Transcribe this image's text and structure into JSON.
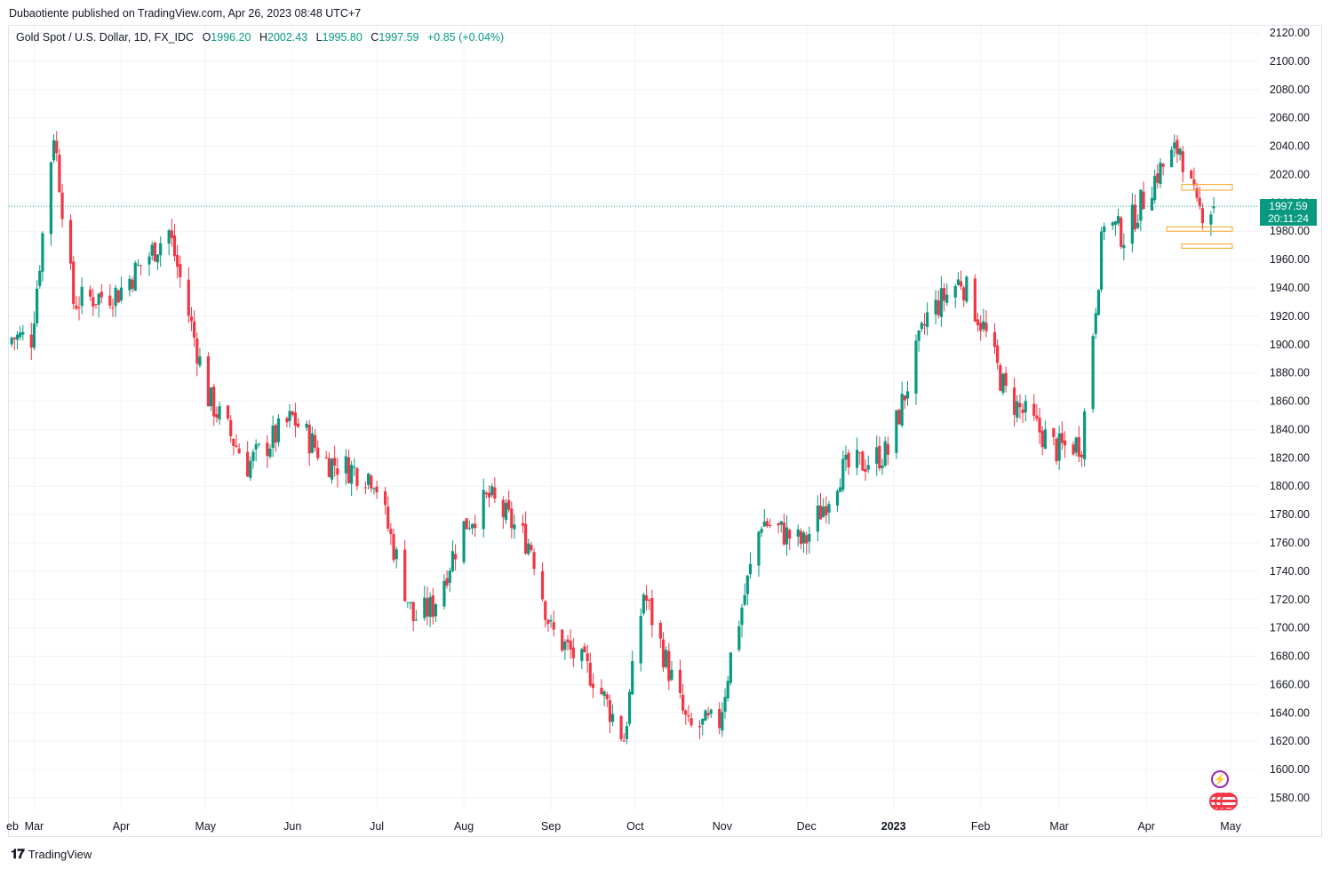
{
  "publisher": "Dubaotiente published on TradingView.com, Apr 26, 2023 08:48 UTC+7",
  "legend": {
    "symbol": "Gold Spot / U.S. Dollar, 1D, FX_IDC",
    "o_label": "O",
    "o_value": "1996.20",
    "h_label": "H",
    "h_value": "2002.43",
    "l_label": "L",
    "l_value": "1995.80",
    "c_label": "C",
    "c_value": "1997.59",
    "change": "+0.85 (+0.04%)"
  },
  "price_tag": {
    "price": "1997.59",
    "countdown": "20:11:24"
  },
  "footer": {
    "brand": "TradingView"
  },
  "colors": {
    "up": "#089981",
    "down": "#f23645",
    "grid": "#f0f3fa",
    "zone": "#f5a623"
  },
  "chart_data": {
    "type": "candlestick",
    "title": "Gold Spot / U.S. Dollar, 1D, FX_IDC",
    "ylim": [
      1570,
      2125
    ],
    "y_ticks": [
      2120,
      2100,
      2080,
      2060,
      2040,
      2020,
      2000,
      1980,
      1960,
      1940,
      1920,
      1900,
      1880,
      1860,
      1840,
      1820,
      1800,
      1780,
      1760,
      1740,
      1720,
      1700,
      1680,
      1660,
      1640,
      1620,
      1600,
      1580
    ],
    "x_labels": [
      "eb",
      "Mar",
      "Apr",
      "May",
      "Jun",
      "Jul",
      "Aug",
      "Sep",
      "Oct",
      "Nov",
      "Dec",
      "2023",
      "Feb",
      "Mar",
      "Apr",
      "May"
    ],
    "last_price": 1997.59,
    "approx_close_path": [
      [
        "2022-02-28",
        1905
      ],
      [
        "2022-03-08",
        2050
      ],
      [
        "2022-03-15",
        1930
      ],
      [
        "2022-03-31",
        1937
      ],
      [
        "2022-04-18",
        1980
      ],
      [
        "2022-05-02",
        1863
      ],
      [
        "2022-05-16",
        1815
      ],
      [
        "2022-06-01",
        1848
      ],
      [
        "2022-06-13",
        1818
      ],
      [
        "2022-06-30",
        1807
      ],
      [
        "2022-07-14",
        1706
      ],
      [
        "2022-07-21",
        1715
      ],
      [
        "2022-08-01",
        1772
      ],
      [
        "2022-08-10",
        1792
      ],
      [
        "2022-08-25",
        1758
      ],
      [
        "2022-09-01",
        1698
      ],
      [
        "2022-09-16",
        1666
      ],
      [
        "2022-09-27",
        1622
      ],
      [
        "2022-10-04",
        1725
      ],
      [
        "2022-10-20",
        1628
      ],
      [
        "2022-10-31",
        1634
      ],
      [
        "2022-11-04",
        1680
      ],
      [
        "2022-11-15",
        1776
      ],
      [
        "2022-11-30",
        1759
      ],
      [
        "2022-12-13",
        1810
      ],
      [
        "2022-12-30",
        1824
      ],
      [
        "2023-01-13",
        1920
      ],
      [
        "2023-01-25",
        1946
      ],
      [
        "2023-02-02",
        1912
      ],
      [
        "2023-02-10",
        1865
      ],
      [
        "2023-02-28",
        1826
      ],
      [
        "2023-03-09",
        1831
      ],
      [
        "2023-03-17",
        1989
      ],
      [
        "2023-03-24",
        1977
      ],
      [
        "2023-04-05",
        2021
      ],
      [
        "2023-04-13",
        2040
      ],
      [
        "2023-04-19",
        1994
      ],
      [
        "2023-04-25",
        1997.59
      ]
    ],
    "annotations": [
      {
        "type": "zone",
        "from": 2009,
        "to": 2013
      },
      {
        "type": "zone",
        "from": 1980,
        "to": 1983
      },
      {
        "type": "zone",
        "from": 1968,
        "to": 1971
      }
    ],
    "grid": true,
    "legend_position": "top-left"
  }
}
